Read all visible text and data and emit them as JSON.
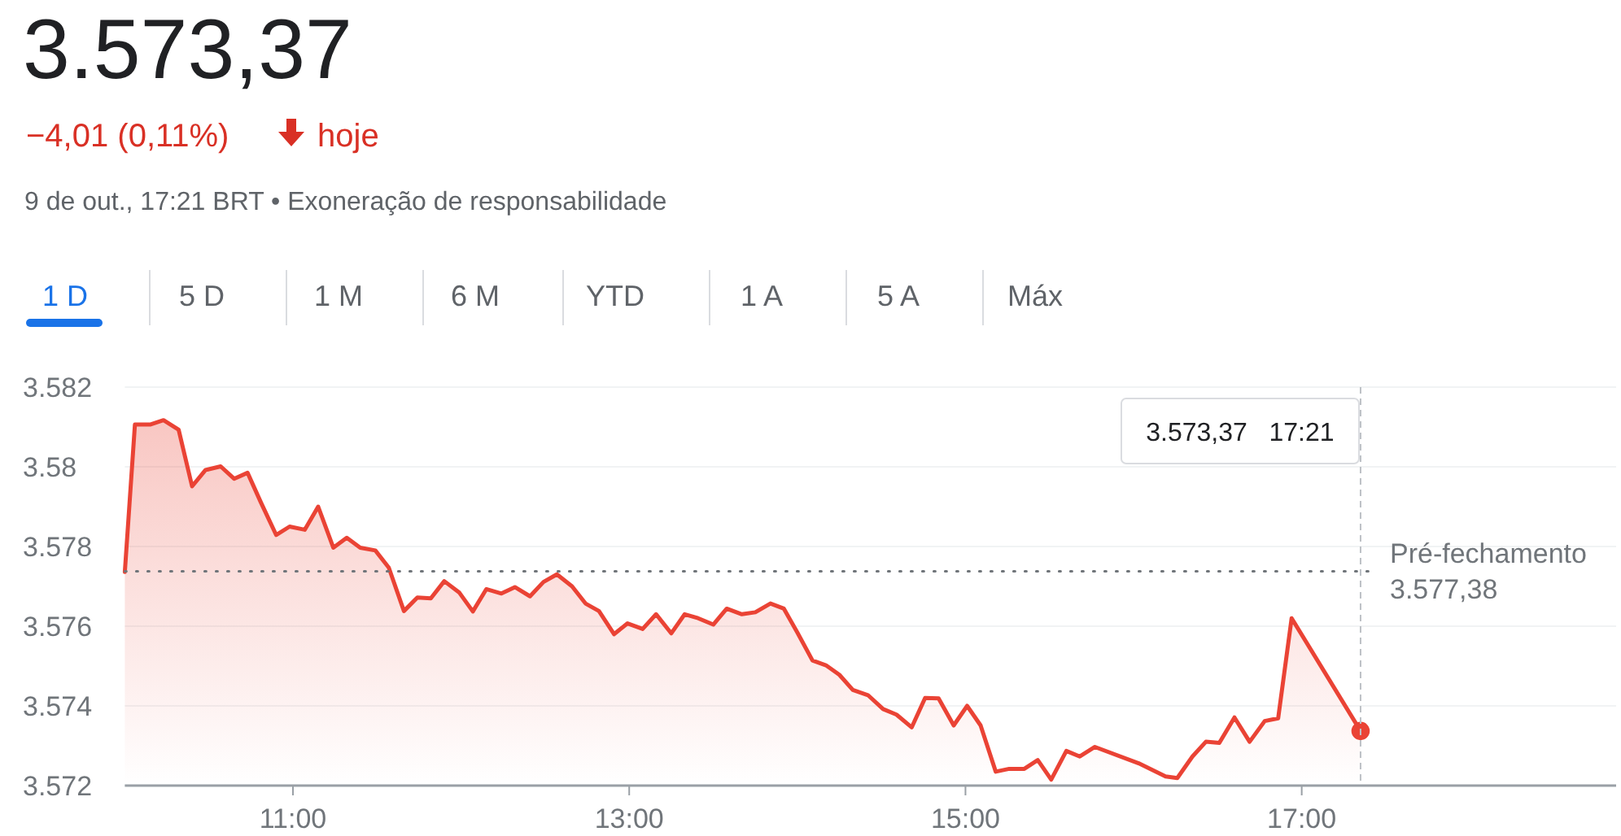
{
  "chart_data": {
    "type": "area",
    "title": "3.573,37",
    "subtitle": "−4,01 (0,11%) hoje",
    "annotations": [
      "9 de out., 17:21 BRT • Exoneração de responsabilidade",
      "1 D",
      "5 D",
      "1 M",
      "6 M",
      "YTD",
      "1 A",
      "5 A",
      "Máx",
      "3.573,37   17:21"
    ],
    "series": [
      {
        "color": "#ea4335",
        "x": [
          10.0,
          10.06,
          10.15,
          10.23,
          10.32,
          10.4,
          10.48,
          10.57,
          10.65,
          10.73,
          10.81,
          10.9,
          10.98,
          11.07,
          11.15,
          11.24,
          11.32,
          11.4,
          11.49,
          11.57,
          11.66,
          11.74,
          11.82,
          11.9,
          11.99,
          12.07,
          12.15,
          12.24,
          12.32,
          12.41,
          12.49,
          12.57,
          12.66,
          12.74,
          12.82,
          12.91,
          12.99,
          13.08,
          13.16,
          13.25,
          13.33,
          13.41,
          13.5,
          13.58,
          13.67,
          13.75,
          13.84,
          13.92,
          14.0,
          14.09,
          14.17,
          14.25,
          14.33,
          14.42,
          14.51,
          14.59,
          14.68,
          14.76,
          14.84,
          14.93,
          15.01,
          15.09,
          15.18,
          15.26,
          15.35,
          15.43,
          15.51,
          15.6,
          15.68,
          15.77,
          16.03,
          16.19,
          16.26,
          16.35,
          16.43,
          16.51,
          16.6,
          16.69,
          16.78,
          16.86,
          16.94,
          17.35
        ],
        "values": [
          3.57736,
          3.58106,
          3.58106,
          3.58117,
          3.58093,
          3.57951,
          3.57992,
          3.58001,
          3.5797,
          3.57985,
          3.5791,
          3.57829,
          3.5785,
          3.57842,
          3.579,
          3.57797,
          3.57822,
          3.57797,
          3.5779,
          3.57747,
          3.57638,
          3.57672,
          3.5767,
          3.57713,
          3.57684,
          3.57637,
          3.57693,
          3.57682,
          3.57698,
          3.57675,
          3.57711,
          3.5773,
          3.577,
          3.57657,
          3.57638,
          3.5758,
          3.57607,
          3.57593,
          3.5763,
          3.57582,
          3.5763,
          3.5762,
          3.57604,
          3.57644,
          3.5763,
          3.57635,
          3.57657,
          3.57644,
          3.57584,
          3.57514,
          3.57502,
          3.57478,
          3.5744,
          3.57427,
          3.57392,
          3.57378,
          3.57346,
          3.5742,
          3.57419,
          3.57351,
          3.574,
          3.57351,
          3.57235,
          3.57242,
          3.57242,
          3.57264,
          3.57215,
          3.57287,
          3.57273,
          3.57297,
          3.57256,
          3.57223,
          3.57219,
          3.57273,
          3.5731,
          3.57307,
          3.57371,
          3.5731,
          3.57362,
          3.57369,
          3.5762,
          3.57337
        ]
      },
      {
        "type": "scatter",
        "color": "#ea4335",
        "marker": "circle",
        "x": [
          17.35
        ],
        "values": [
          3.57337
        ]
      }
    ],
    "xlim": [
      10,
      18.87
    ],
    "ylim": [
      3.572,
      3.582
    ],
    "xticks": [
      {
        "value": 11,
        "label": "11:00"
      },
      {
        "value": 13,
        "label": "13:00"
      },
      {
        "value": 15,
        "label": "15:00"
      },
      {
        "value": 17,
        "label": "17:00"
      }
    ],
    "yticks": [
      3.572,
      3.574,
      3.576,
      3.578,
      3.58,
      3.582
    ],
    "grid": "y",
    "marker": "none",
    "ref_lines": [
      {
        "axis": "y",
        "value": 3.57738,
        "label": "Pré-fechamento\n3.577,38",
        "color": "#70757a",
        "line_style": "dotted"
      },
      {
        "axis": "x",
        "value": 17.35,
        "color": "#bdc1c6",
        "line_style": "dashed"
      }
    ]
  }
}
